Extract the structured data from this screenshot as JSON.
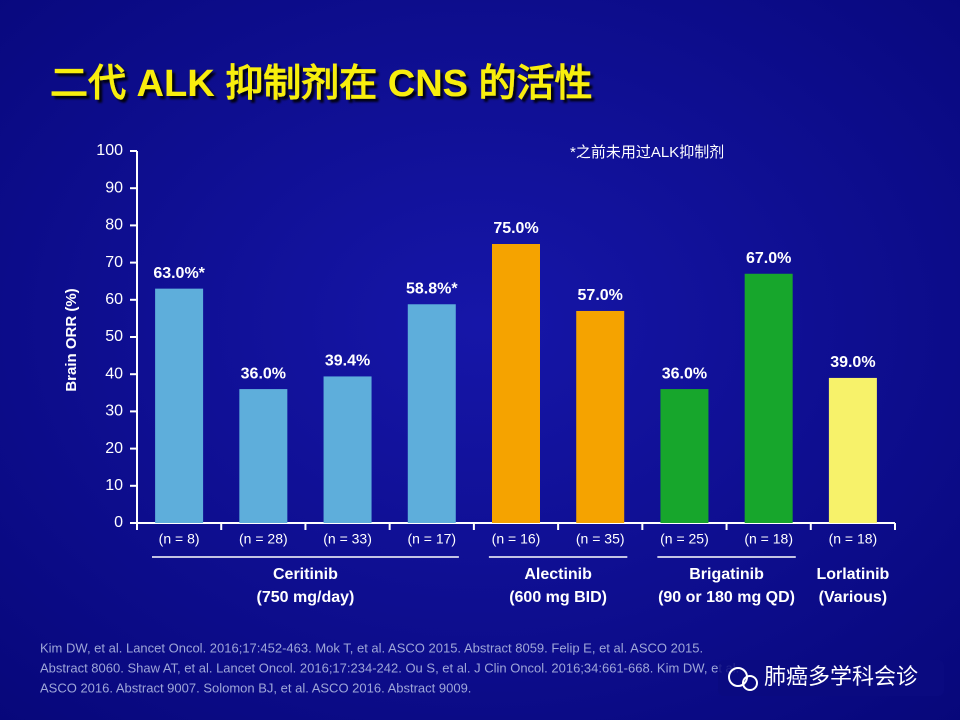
{
  "chart_data": {
    "type": "bar",
    "title": "二代 ALK 抑制剂在 CNS 的活性",
    "note": "*之前未用过ALK抑制剂",
    "y_label": "Brain ORR (%)",
    "categories": [
      "(n = 8)",
      "(n = 28)",
      "(n = 33)",
      "(n = 17)",
      "(n = 16)",
      "(n = 35)",
      "(n = 25)",
      "(n = 18)",
      "(n = 18)"
    ],
    "values": [
      63.0,
      36.0,
      39.4,
      58.8,
      75.0,
      57.0,
      36.0,
      67.0,
      39.0
    ],
    "value_labels": [
      "63.0%*",
      "36.0%",
      "39.4%",
      "58.8%*",
      "75.0%",
      "57.0%",
      "36.0%",
      "67.0%",
      "39.0%"
    ],
    "colors": [
      "#5eaedb",
      "#5eaedb",
      "#5eaedb",
      "#5eaedb",
      "#f5a300",
      "#f5a300",
      "#17a62c",
      "#17a62c",
      "#f7f26a"
    ],
    "groups": [
      {
        "label": [
          "Ceritinib",
          "(750 mg/day)"
        ],
        "size": 4
      },
      {
        "label": [
          "Alectinib",
          "(600 mg BID)"
        ],
        "size": 2
      },
      {
        "label": [
          "Brigatinib",
          "(90 or 180 mg QD)"
        ],
        "size": 2
      },
      {
        "label": [
          "Lorlatinib",
          "(Various)"
        ],
        "size": 1
      }
    ],
    "ylim": [
      0,
      100
    ],
    "yticks": [
      0,
      10,
      20,
      30,
      40,
      50,
      60,
      70,
      80,
      90,
      100
    ],
    "grid": false
  },
  "footnote": [
    "Kim DW, et al. Lancet Oncol. 2016;17:452-463. Mok T, et al. ASCO 2015. Abstract 8059. Felip E, et al. ASCO 2015.",
    "Abstract 8060. Shaw AT, et al. Lancet Oncol. 2016;17:234-242. Ou S, et al. J Clin Oncol. 2016;34:661-668. Kim DW, et al.",
    "ASCO 2016. Abstract 9007. Solomon BJ, et al. ASCO 2016. Abstract 9009."
  ],
  "watermark": "肺癌多学科会诊"
}
